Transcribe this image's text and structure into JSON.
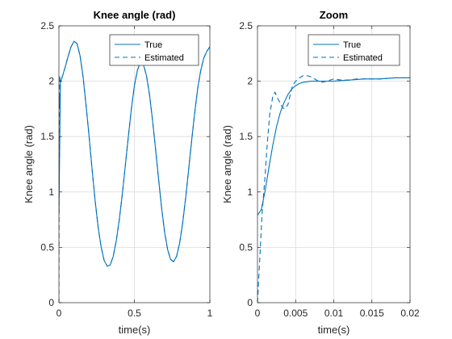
{
  "colors": {
    "series": "#0072bd",
    "axis": "#262626",
    "grid": "#dcdcdc"
  },
  "chart_data": [
    {
      "type": "line",
      "title": "Knee angle (rad)",
      "xlabel": "time(s)",
      "ylabel": "Knee angle (rad)",
      "xlim": [
        0,
        1
      ],
      "ylim": [
        0,
        2.5
      ],
      "xticks": [
        0,
        0.5,
        1
      ],
      "xtick_labels": [
        "0",
        "0.5",
        "1"
      ],
      "yticks": [
        0,
        0.5,
        1,
        1.5,
        2,
        2.5
      ],
      "ytick_labels": [
        "0",
        "0.5",
        "1",
        "1.5",
        "2",
        "2.5"
      ],
      "grid": true,
      "legend_position": "top-right",
      "series": [
        {
          "name": "True",
          "style": "solid",
          "x": [
            0,
            0.01,
            0.02,
            0.04,
            0.06,
            0.08,
            0.1,
            0.12,
            0.14,
            0.16,
            0.18,
            0.2,
            0.22,
            0.24,
            0.26,
            0.28,
            0.3,
            0.32,
            0.34,
            0.36,
            0.38,
            0.4,
            0.42,
            0.44,
            0.46,
            0.48,
            0.5,
            0.52,
            0.54,
            0.56,
            0.58,
            0.6,
            0.62,
            0.64,
            0.66,
            0.68,
            0.7,
            0.72,
            0.74,
            0.76,
            0.78,
            0.8,
            0.82,
            0.84,
            0.86,
            0.88,
            0.9,
            0.92,
            0.94,
            0.96,
            0.98,
            1.0
          ],
          "y": [
            0.79,
            1.99,
            2.03,
            2.12,
            2.22,
            2.31,
            2.36,
            2.34,
            2.23,
            2.04,
            1.78,
            1.5,
            1.2,
            0.92,
            0.68,
            0.5,
            0.38,
            0.33,
            0.34,
            0.42,
            0.56,
            0.75,
            0.98,
            1.24,
            1.5,
            1.75,
            1.96,
            2.1,
            2.17,
            2.15,
            2.05,
            1.88,
            1.65,
            1.39,
            1.12,
            0.86,
            0.64,
            0.48,
            0.39,
            0.37,
            0.42,
            0.54,
            0.72,
            0.95,
            1.21,
            1.47,
            1.72,
            1.94,
            2.1,
            2.21,
            2.27,
            2.31
          ]
        },
        {
          "name": "Estimated",
          "style": "dashed",
          "x": [
            0,
            0.002,
            0.004,
            0.006,
            0.008,
            0.01,
            0.02,
            0.04,
            0.06,
            0.08,
            0.1,
            0.12,
            0.14,
            0.16,
            0.18,
            0.2,
            0.22,
            0.24,
            0.26,
            0.28,
            0.3,
            0.32,
            0.34,
            0.36,
            0.38,
            0.4,
            0.42,
            0.44,
            0.46,
            0.48,
            0.5,
            0.52,
            0.54,
            0.56,
            0.58,
            0.6,
            0.62,
            0.64,
            0.66,
            0.68,
            0.7,
            0.72,
            0.74,
            0.76,
            0.78,
            0.8,
            0.82,
            0.84,
            0.86,
            0.88,
            0.9,
            0.92,
            0.94,
            0.96,
            0.98,
            1.0
          ],
          "y": [
            0.0,
            1.88,
            1.75,
            2.05,
            1.99,
            2.0,
            2.03,
            2.12,
            2.22,
            2.31,
            2.36,
            2.34,
            2.23,
            2.04,
            1.78,
            1.5,
            1.2,
            0.92,
            0.68,
            0.5,
            0.38,
            0.33,
            0.34,
            0.42,
            0.56,
            0.75,
            0.98,
            1.24,
            1.5,
            1.75,
            1.96,
            2.1,
            2.17,
            2.15,
            2.05,
            1.88,
            1.65,
            1.39,
            1.12,
            0.86,
            0.64,
            0.48,
            0.39,
            0.37,
            0.42,
            0.54,
            0.72,
            0.95,
            1.21,
            1.47,
            1.72,
            1.94,
            2.1,
            2.21,
            2.27,
            2.31
          ]
        }
      ]
    },
    {
      "type": "line",
      "title": "Zoom",
      "xlabel": "time(s)",
      "ylabel": "Knee angle (rad)",
      "xlim": [
        0,
        0.02
      ],
      "ylim": [
        0,
        2.5
      ],
      "xticks": [
        0,
        0.005,
        0.01,
        0.015,
        0.02
      ],
      "xtick_labels": [
        "0",
        "0.005",
        "0.01",
        "0.015",
        "0.02"
      ],
      "yticks": [
        0,
        0.5,
        1,
        1.5,
        2,
        2.5
      ],
      "ytick_labels": [
        "0",
        "0.5",
        "1",
        "1.5",
        "2",
        "2.5"
      ],
      "grid": true,
      "legend_position": "top-right",
      "series": [
        {
          "name": "True",
          "style": "solid",
          "x": [
            0,
            0.0005,
            0.001,
            0.0015,
            0.002,
            0.0025,
            0.003,
            0.0035,
            0.004,
            0.0045,
            0.005,
            0.0055,
            0.006,
            0.007,
            0.008,
            0.009,
            0.01,
            0.012,
            0.014,
            0.016,
            0.018,
            0.02
          ],
          "y": [
            0.79,
            0.84,
            1.01,
            1.22,
            1.42,
            1.59,
            1.72,
            1.81,
            1.88,
            1.93,
            1.96,
            1.98,
            1.99,
            2.0,
            2.0,
            2.0,
            2.0,
            2.01,
            2.02,
            2.02,
            2.03,
            2.03
          ]
        },
        {
          "name": "Estimated",
          "style": "dashed",
          "x": [
            0,
            0.0003,
            0.0006,
            0.001,
            0.0013,
            0.0016,
            0.002,
            0.0023,
            0.0026,
            0.003,
            0.0033,
            0.0036,
            0.004,
            0.0043,
            0.0046,
            0.005,
            0.0055,
            0.006,
            0.0065,
            0.007,
            0.0075,
            0.008,
            0.0085,
            0.009,
            0.0095,
            0.01,
            0.011,
            0.012,
            0.013,
            0.014,
            0.016,
            0.018,
            0.02
          ],
          "y": [
            0.0,
            0.4,
            0.8,
            1.15,
            1.45,
            1.7,
            1.86,
            1.9,
            1.85,
            1.8,
            1.76,
            1.75,
            1.79,
            1.88,
            1.96,
            2.0,
            2.03,
            2.05,
            2.05,
            2.04,
            2.02,
            2.0,
            1.99,
            2.0,
            2.01,
            2.02,
            2.01,
            2.01,
            2.02,
            2.02,
            2.02,
            2.03,
            2.03
          ]
        }
      ]
    }
  ]
}
